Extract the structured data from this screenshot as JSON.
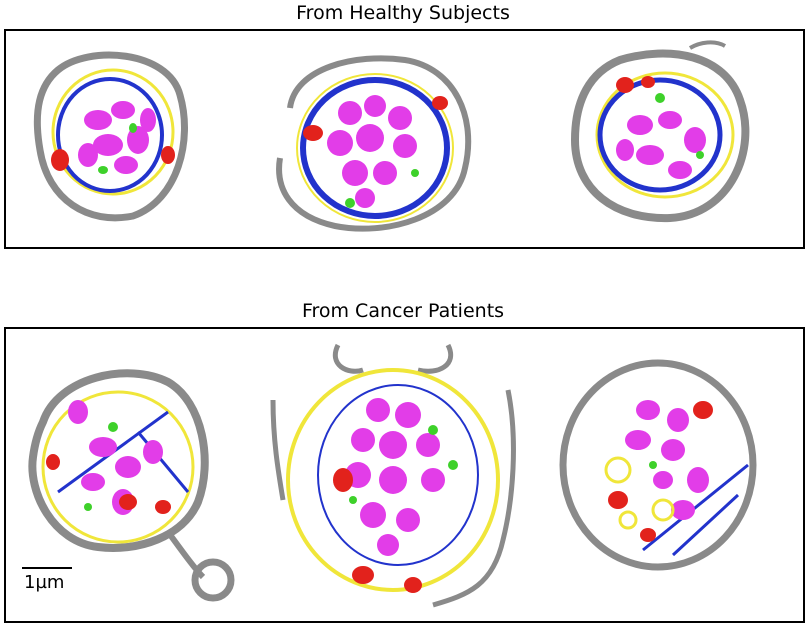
{
  "titles": {
    "healthy": "From Healthy Subjects",
    "cancer": "From Cancer Patients"
  },
  "scale_bar": {
    "label": "1µm"
  },
  "colors": {
    "membrane": "#8a8a8a",
    "granules": "#e23de8",
    "tubules": "#f0e63a",
    "microtubules": "#2233cc",
    "red_bodies": "#e2221c",
    "green_bodies": "#3ed12a"
  }
}
